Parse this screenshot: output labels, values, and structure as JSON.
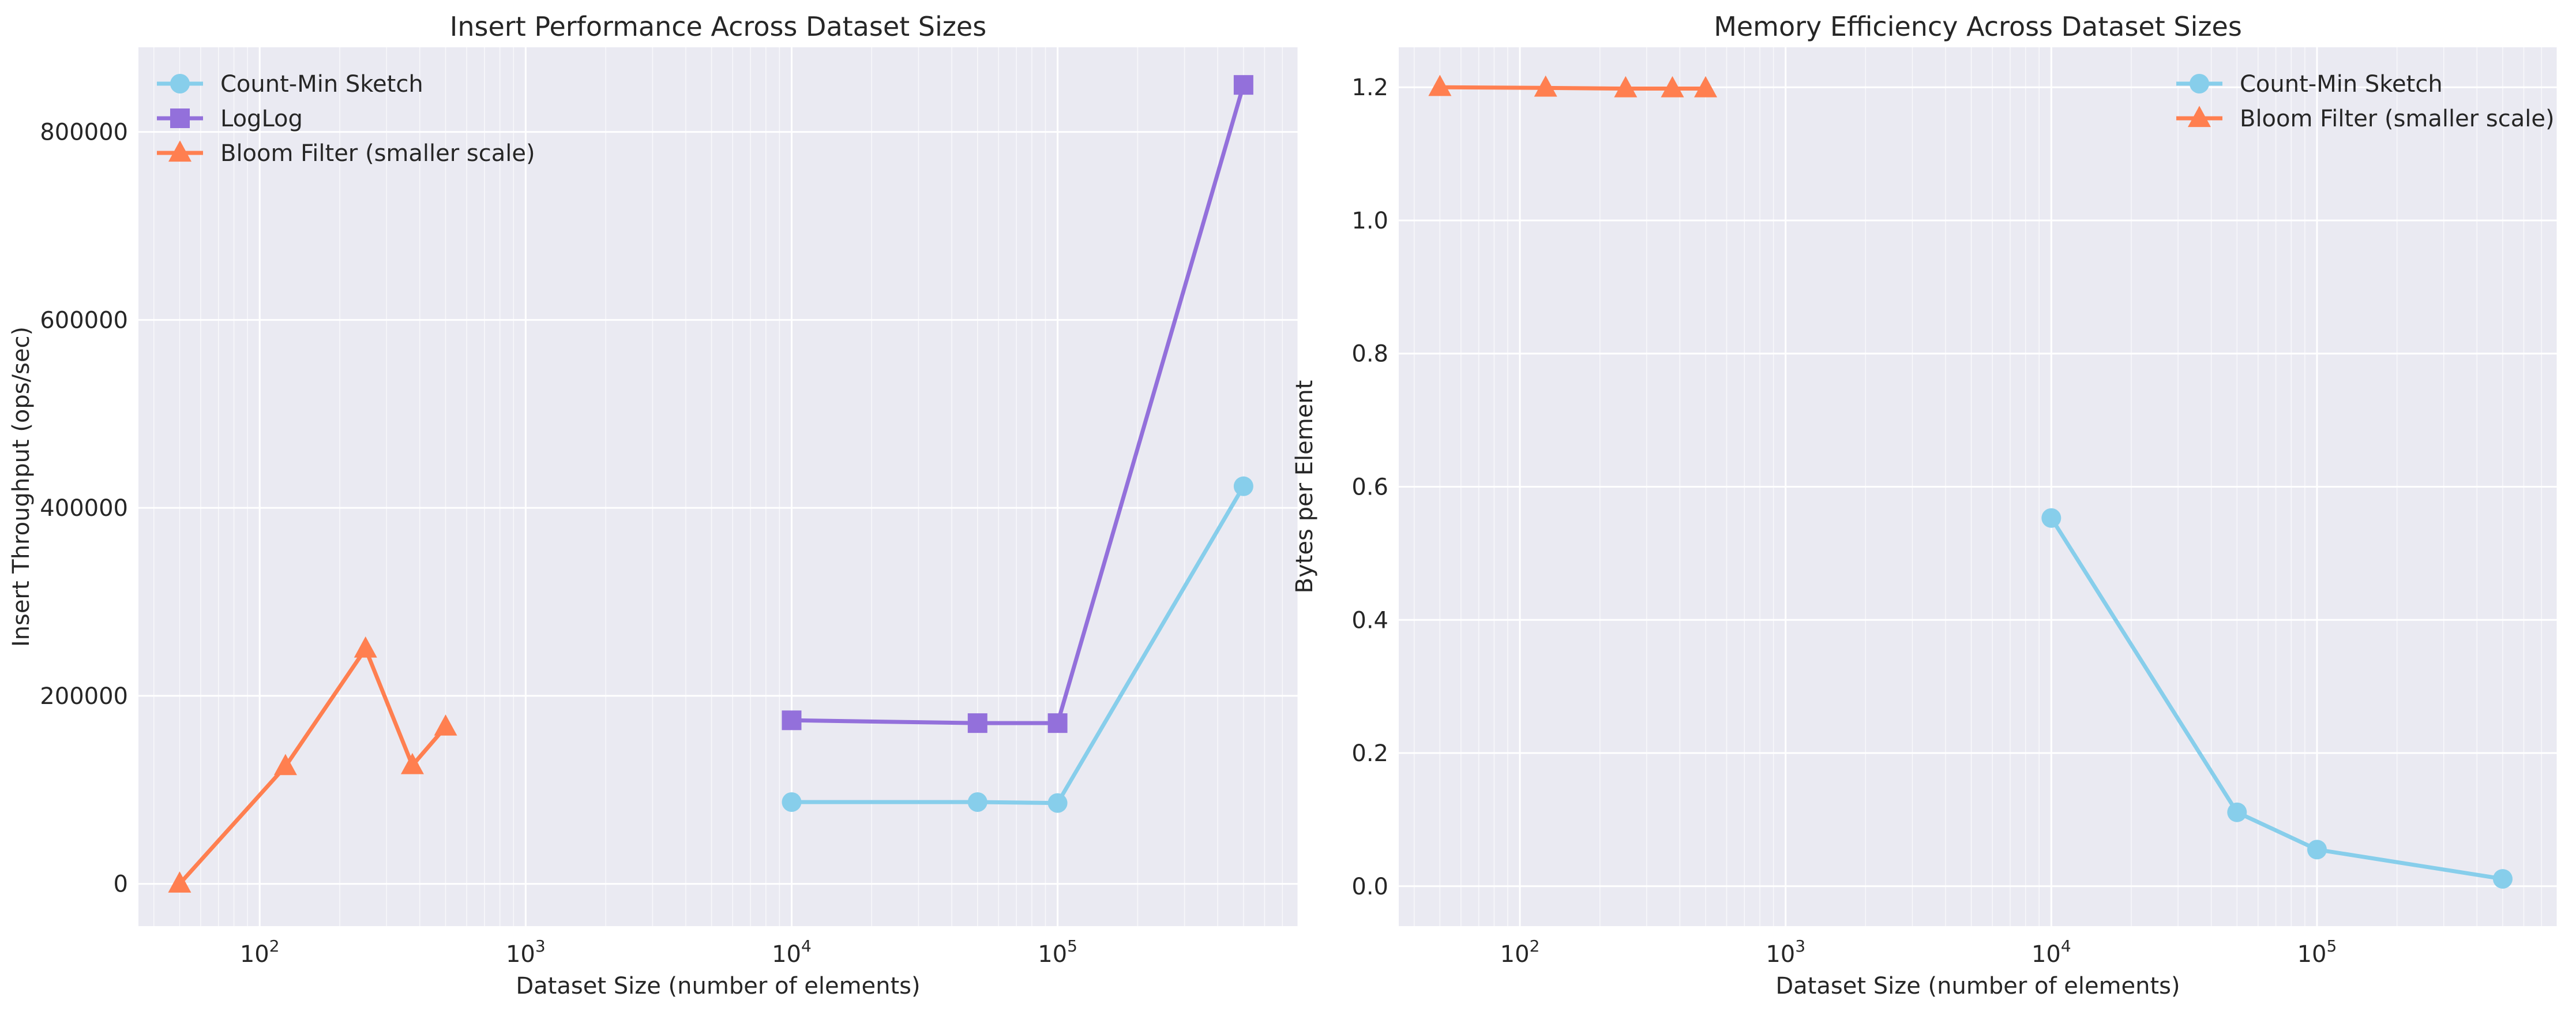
{
  "chart_data": [
    {
      "type": "line",
      "title": "Insert Performance Across Dataset Sizes",
      "xlabel": "Dataset Size (number of elements)",
      "ylabel": "Insert Throughput (ops/sec)",
      "xscale": "log",
      "xlim": [
        35,
        800000
      ],
      "ylim": [
        -45000,
        890000
      ],
      "x_ticks": [
        {
          "base": "10",
          "exp": "2",
          "value": 100
        },
        {
          "base": "10",
          "exp": "3",
          "value": 1000
        },
        {
          "base": "10",
          "exp": "4",
          "value": 10000
        },
        {
          "base": "10",
          "exp": "5",
          "value": 100000
        }
      ],
      "y_ticks": [
        0,
        200000,
        400000,
        600000,
        800000
      ],
      "grid": true,
      "legend_position": "upper-left",
      "series": [
        {
          "name": "Count-Min Sketch",
          "color": "#87ceeb",
          "marker": "circle",
          "x": [
            10000,
            50000,
            100000,
            500000
          ],
          "y": [
            87000,
            87000,
            86000,
            423000
          ]
        },
        {
          "name": "LogLog",
          "color": "#9370db",
          "marker": "square",
          "x": [
            10000,
            50000,
            100000,
            500000
          ],
          "y": [
            174000,
            171000,
            171000,
            850000
          ]
        },
        {
          "name": "Bloom Filter (smaller scale)",
          "color": "#ff7f50",
          "marker": "triangle",
          "x": [
            50,
            125,
            250,
            375,
            500
          ],
          "y": [
            0,
            125000,
            250000,
            126000,
            167000
          ]
        }
      ]
    },
    {
      "type": "line",
      "title": "Memory Efficiency Across Dataset Sizes",
      "xlabel": "Dataset Size (number of elements)",
      "ylabel": "Bytes per Element",
      "xscale": "log",
      "xlim": [
        35,
        800000
      ],
      "ylim": [
        -0.06,
        1.26
      ],
      "x_ticks": [
        {
          "base": "10",
          "exp": "2",
          "value": 100
        },
        {
          "base": "10",
          "exp": "3",
          "value": 1000
        },
        {
          "base": "10",
          "exp": "4",
          "value": 10000
        },
        {
          "base": "10",
          "exp": "5",
          "value": 100000
        }
      ],
      "y_ticks": [
        "0.0",
        "0.2",
        "0.4",
        "0.6",
        "0.8",
        "1.0",
        "1.2"
      ],
      "grid": true,
      "legend_position": "upper-right",
      "series": [
        {
          "name": "Count-Min Sketch",
          "color": "#87ceeb",
          "marker": "circle",
          "x": [
            10000,
            50000,
            100000,
            500000
          ],
          "y": [
            0.553,
            0.111,
            0.055,
            0.011
          ]
        },
        {
          "name": "Bloom Filter (smaller scale)",
          "color": "#ff7f50",
          "marker": "triangle",
          "x": [
            50,
            125,
            250,
            375,
            500
          ],
          "y": [
            1.2,
            1.199,
            1.198,
            1.198,
            1.198
          ]
        }
      ]
    }
  ]
}
